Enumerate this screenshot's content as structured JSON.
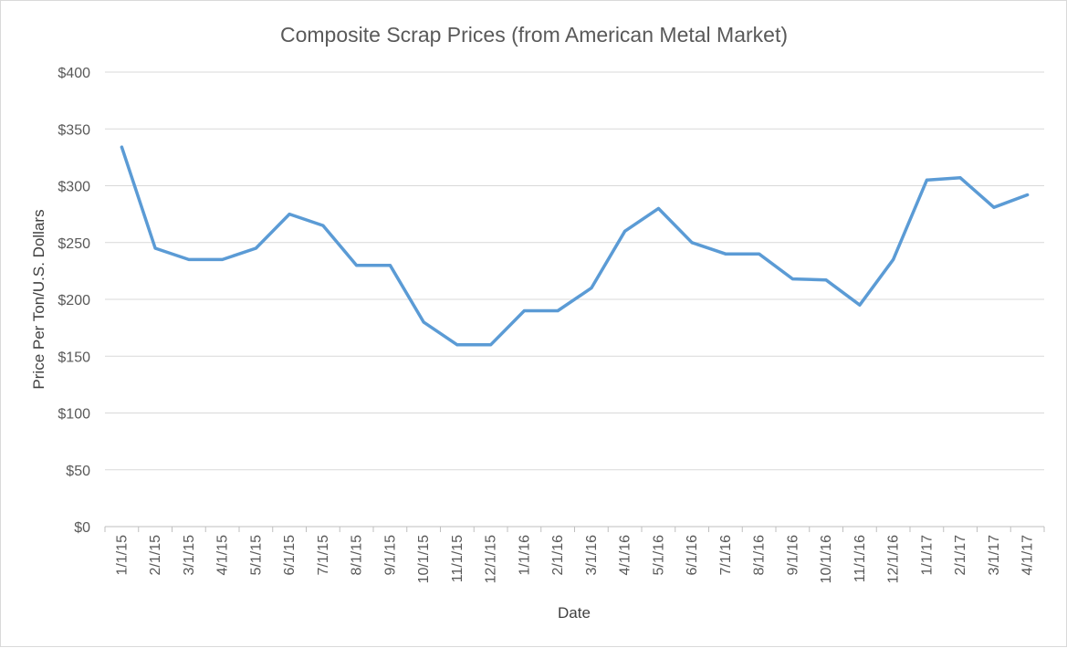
{
  "chart_data": {
    "type": "line",
    "title": "Composite Scrap Prices (from American Metal Market)",
    "xlabel": "Date",
    "ylabel": "Price Per Ton/U.S. Dollars",
    "ylim": [
      0,
      400
    ],
    "y_ticks": [
      0,
      50,
      100,
      150,
      200,
      250,
      300,
      350,
      400
    ],
    "y_tick_labels": [
      "$0",
      "$50",
      "$100",
      "$150",
      "$200",
      "$250",
      "$300",
      "$350",
      "$400"
    ],
    "grid": true,
    "legend": "none",
    "categories": [
      "1/1/15",
      "2/1/15",
      "3/1/15",
      "4/1/15",
      "5/1/15",
      "6/1/15",
      "7/1/15",
      "8/1/15",
      "9/1/15",
      "10/1/15",
      "11/1/15",
      "12/1/15",
      "1/1/16",
      "2/1/16",
      "3/1/16",
      "4/1/16",
      "5/1/16",
      "6/1/16",
      "7/1/16",
      "8/1/16",
      "9/1/16",
      "10/1/16",
      "11/1/16",
      "12/1/16",
      "1/1/17",
      "2/1/17",
      "3/1/17",
      "4/1/17"
    ],
    "series": [
      {
        "color": "#5b9bd5",
        "values": [
          334,
          245,
          235,
          235,
          245,
          275,
          265,
          230,
          230,
          180,
          160,
          160,
          190,
          190,
          210,
          260,
          280,
          250,
          240,
          240,
          218,
          217,
          195,
          235,
          305,
          307,
          281,
          292
        ]
      }
    ]
  }
}
